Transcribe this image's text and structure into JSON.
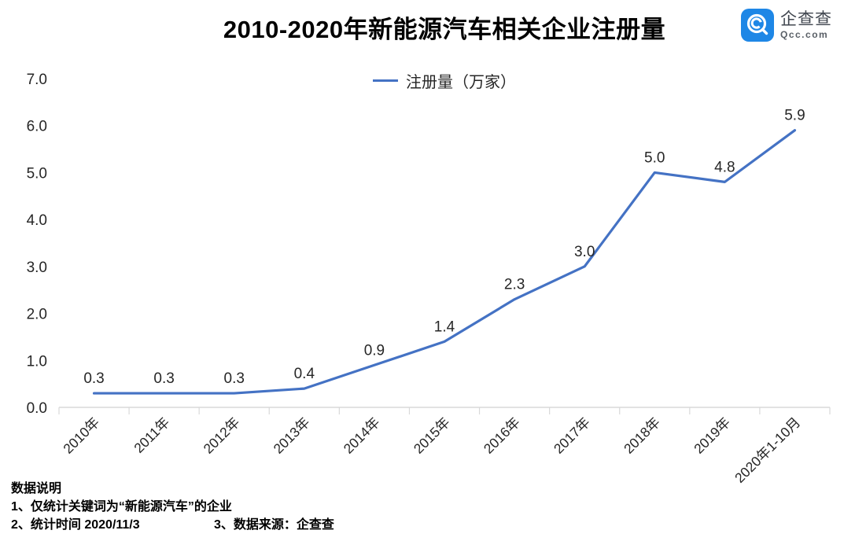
{
  "title": "2010-2020年新能源汽车相关企业注册量",
  "logo": {
    "name": "企查查",
    "domain": "Qcc.com",
    "icon": "qcc-magnifier-icon",
    "color": "#1e87e6"
  },
  "legend": {
    "label": "注册量（万家）"
  },
  "chart_data": {
    "type": "line",
    "categories": [
      "2010年",
      "2011年",
      "2012年",
      "2013年",
      "2014年",
      "2015年",
      "2016年",
      "2017年",
      "2018年",
      "2019年",
      "2020年1-10月"
    ],
    "series": [
      {
        "name": "注册量（万家）",
        "values": [
          0.3,
          0.3,
          0.3,
          0.4,
          0.9,
          1.4,
          2.3,
          3.0,
          5.0,
          4.8,
          5.9
        ],
        "labels": [
          "0.3",
          "0.3",
          "0.3",
          "0.4",
          "0.9",
          "1.4",
          "2.3",
          "3.0",
          "5.0",
          "4.8",
          "5.9"
        ],
        "color": "#4472C4"
      }
    ],
    "ylim": [
      0,
      7
    ],
    "ytick_step": 1,
    "ytick_labels": [
      "0.0",
      "1.0",
      "2.0",
      "3.0",
      "4.0",
      "5.0",
      "6.0",
      "7.0"
    ],
    "grid": false,
    "legend_position": "top-center",
    "axis_color": "#d9d9d9",
    "label_color": "#262626"
  },
  "notes": {
    "heading": "数据说明",
    "line1": "1、仅统计关键词为“新能源汽车”的企业",
    "line2": "2、统计时间  2020/11/3",
    "line3": "3、数据来源：企查查"
  }
}
